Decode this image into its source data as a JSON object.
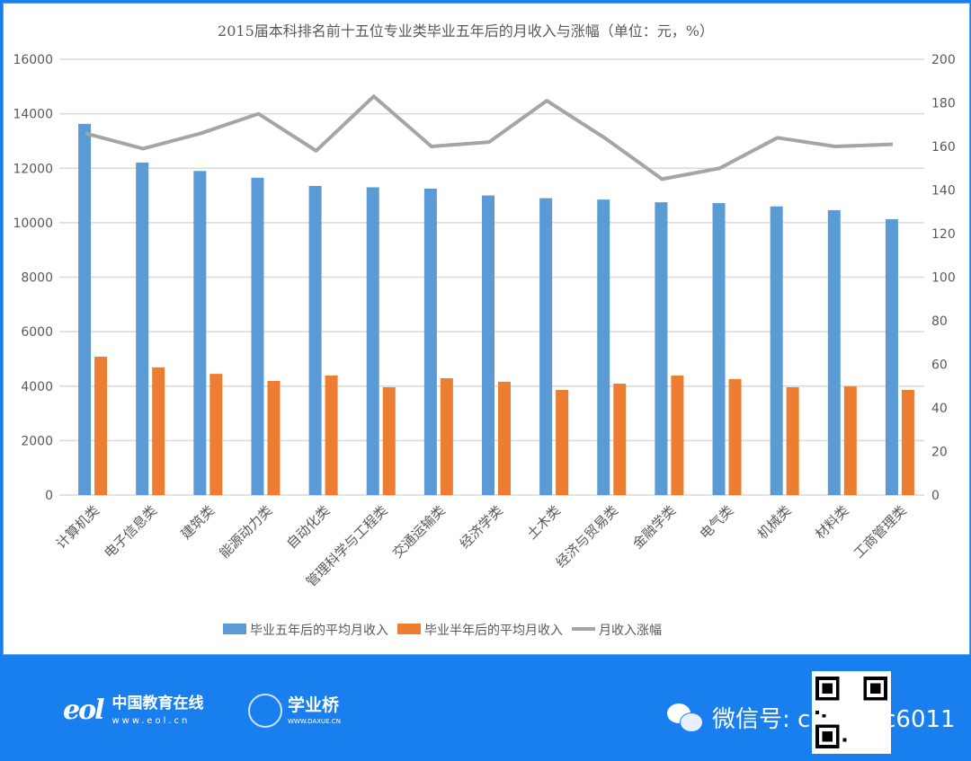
{
  "chart_data": {
    "type": "bar",
    "title": "2015届本科排名前十五位专业类毕业五年后的月收入与涨幅（单位：元，%）",
    "categories": [
      "计算机类",
      "电子信息类",
      "建筑类",
      "能源动力类",
      "自动化类",
      "管理科学与工程类",
      "交通运输类",
      "经济学类",
      "土木类",
      "经济与贸易类",
      "金融学类",
      "电气类",
      "机械类",
      "材料类",
      "工商管理类"
    ],
    "series": [
      {
        "name": "毕业五年后的平均月收入",
        "type": "bar",
        "axis": "left",
        "color": "#5b9bd5",
        "values": [
          13630,
          12210,
          11900,
          11650,
          11350,
          11300,
          11250,
          11000,
          10900,
          10850,
          10750,
          10720,
          10600,
          10460,
          10130
        ]
      },
      {
        "name": "毕业半年后的平均月收入",
        "type": "bar",
        "axis": "left",
        "color": "#ed7d31",
        "values": [
          5080,
          4690,
          4450,
          4190,
          4390,
          3960,
          4290,
          4160,
          3860,
          4090,
          4390,
          4260,
          3960,
          3990,
          3860
        ]
      },
      {
        "name": "月收入涨幅",
        "type": "line",
        "axis": "right",
        "color": "#a5a5a5",
        "values": [
          166,
          159,
          166,
          175,
          158,
          183,
          160,
          162,
          181,
          164,
          145,
          150,
          164,
          160,
          161
        ]
      }
    ],
    "y_left": {
      "range": [
        0,
        16000
      ],
      "ticks": [
        "0",
        "2000",
        "4000",
        "6000",
        "8000",
        "10000",
        "12000",
        "14000",
        "16000"
      ]
    },
    "y_right": {
      "range": [
        0,
        200
      ],
      "ticks": [
        "0",
        "20",
        "40",
        "60",
        "80",
        "100",
        "120",
        "140",
        "160",
        "180",
        "200"
      ]
    },
    "grid": true,
    "legend": "bottom"
  },
  "footer": {
    "eol_name": "中国教育在线",
    "eol_url": "www.eol.cn",
    "eol_mark": "eol",
    "xyq_name": "学业桥",
    "xyq_url": "WWW.DAXUE.CN",
    "wechat_label": "微信号: chenyuc6011",
    "background": "#1a7fee"
  }
}
